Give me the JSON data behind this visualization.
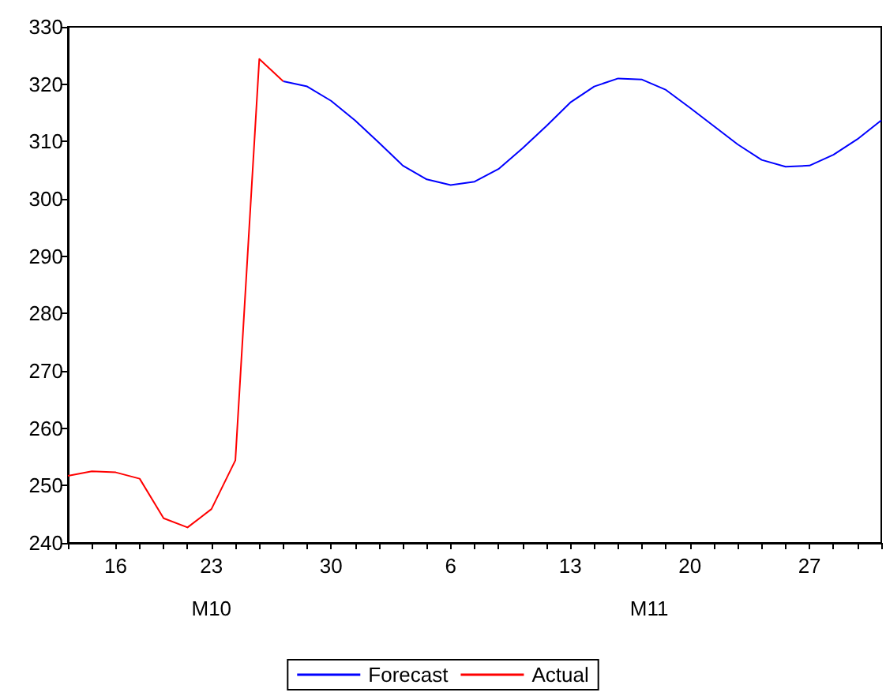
{
  "chart_data": {
    "type": "line",
    "categories": [
      null,
      null,
      "16",
      null,
      null,
      null,
      "23",
      null,
      null,
      null,
      null,
      "30",
      null,
      null,
      null,
      null,
      "6",
      null,
      null,
      null,
      null,
      "13",
      null,
      null,
      null,
      null,
      "20",
      null,
      null,
      null,
      null,
      "27",
      null,
      null,
      null
    ],
    "series": [
      {
        "name": "Forecast",
        "color": "#0000ff",
        "values": [
          null,
          null,
          null,
          null,
          null,
          null,
          null,
          null,
          null,
          320.5,
          319.6,
          317.1,
          313.7,
          309.8,
          305.8,
          303.4,
          302.4,
          303.0,
          305.2,
          308.8,
          312.7,
          316.8,
          319.6,
          321.0,
          320.8,
          319.0,
          315.9,
          312.7,
          309.5,
          306.8,
          305.6,
          305.8,
          307.7,
          310.4,
          313.7
        ]
      },
      {
        "name": "Actual",
        "color": "#ff0000",
        "values": [
          251.7,
          252.5,
          252.3,
          251.2,
          244.3,
          242.7,
          245.9,
          254.4,
          324.4,
          320.5,
          null,
          null,
          null,
          null,
          null,
          null,
          null,
          null,
          null,
          null,
          null,
          null,
          null,
          null,
          null,
          null,
          null,
          null,
          null,
          null,
          null,
          null,
          null,
          null,
          null
        ]
      }
    ],
    "ylim": [
      240,
      330
    ],
    "yticks": [
      240,
      250,
      260,
      270,
      280,
      290,
      300,
      310,
      320,
      330
    ],
    "annotations": [
      "M10",
      "M11"
    ],
    "grid": false,
    "legend": "bottom",
    "marker": "none",
    "line_style": "solid"
  }
}
